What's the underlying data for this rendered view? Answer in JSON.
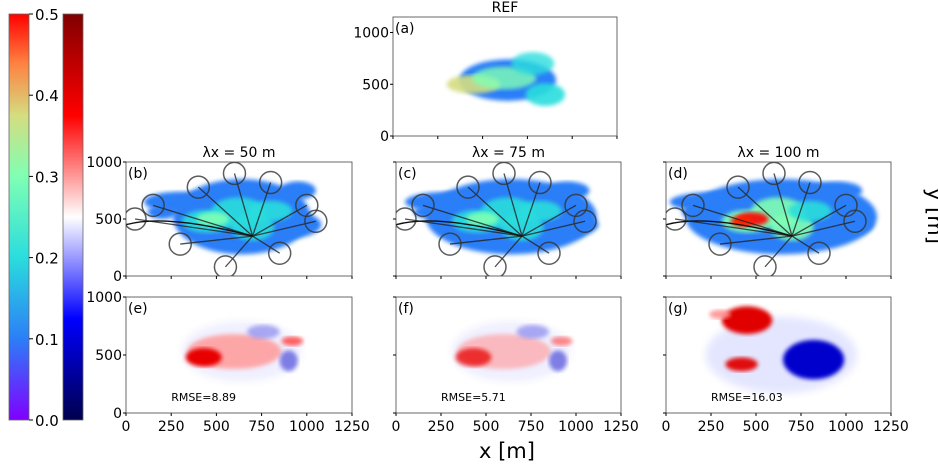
{
  "chart_data": {
    "type": "heatmap",
    "xlabel": "x [m]",
    "ylabel": "y [m]",
    "x_ticks": [
      "0",
      "250",
      "500",
      "750",
      "1000",
      "1250"
    ],
    "y_ticks": [
      "0",
      "500",
      "1000"
    ],
    "xlim": [
      0,
      1250
    ],
    "ylim": [
      0,
      1000
    ],
    "colorbars": [
      {
        "name": "rainbow",
        "ticks": [
          "0.0",
          "0.1",
          "0.2",
          "0.3",
          "0.4",
          "0.5"
        ],
        "range": [
          0,
          0.5
        ],
        "colors": [
          "#8000ff",
          "#2c7ef7",
          "#2adddd",
          "#80ffb4",
          "#d4dd80",
          "#ff8040",
          "#ff0000"
        ]
      },
      {
        "name": "seismic",
        "range": [
          0,
          0.5
        ],
        "colors": [
          "#00004c",
          "#0000ff",
          "#ffffff",
          "#ff0000",
          "#800000"
        ]
      }
    ],
    "panels": [
      {
        "id": "a",
        "label": "(a)",
        "title": "REF"
      },
      {
        "id": "b",
        "label": "(b)",
        "title": "λx = 50 m"
      },
      {
        "id": "c",
        "label": "(c)",
        "title": "λx = 75 m"
      },
      {
        "id": "d",
        "label": "(d)",
        "title": "λx = 100 m"
      },
      {
        "id": "e",
        "label": "(e)",
        "rmse": "RMSE=8.89"
      },
      {
        "id": "f",
        "label": "(f)",
        "rmse": "RMSE=5.71"
      },
      {
        "id": "g",
        "label": "(g)",
        "rmse": "RMSE=16.03"
      }
    ]
  }
}
